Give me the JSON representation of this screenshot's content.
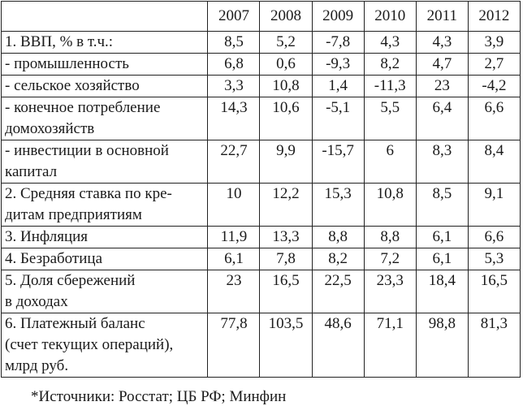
{
  "table": {
    "header": [
      "2007",
      "2008",
      "2009",
      "2010",
      "2011",
      "2012"
    ],
    "rows": [
      {
        "label": [
          "1. ВВП, % в т.ч.:"
        ],
        "values": [
          "8,5",
          "5,2",
          "-7,8",
          "4,3",
          "4,3",
          "3,9"
        ]
      },
      {
        "label": [
          "- промышленность"
        ],
        "values": [
          "6,8",
          "0,6",
          "-9,3",
          "8,2",
          "4,7",
          "2,7"
        ]
      },
      {
        "label": [
          "- сельское хозяйство"
        ],
        "values": [
          "3,3",
          "10,8",
          "1,4",
          "-11,3",
          "23",
          "-4,2"
        ]
      },
      {
        "label": [
          "- конечное потребление",
          "домохозяйств"
        ],
        "values": [
          "14,3",
          "10,6",
          "-5,1",
          "5,5",
          "6,4",
          "6,6"
        ]
      },
      {
        "label": [
          "- инвестиции в основной",
          "капитал"
        ],
        "values": [
          "22,7",
          "9,9",
          "-15,7",
          "6",
          "8,3",
          "8,4"
        ]
      },
      {
        "label": [
          "2. Средняя ставка по кре-",
          "дитам предприятиям"
        ],
        "values": [
          "10",
          "12,2",
          "15,3",
          "10,8",
          "8,5",
          "9,1"
        ]
      },
      {
        "label": [
          "3. Инфляция"
        ],
        "values": [
          "11,9",
          "13,3",
          "8,8",
          "8,8",
          "6,1",
          "6,6"
        ]
      },
      {
        "label": [
          "4. Безработица"
        ],
        "values": [
          "6,1",
          "7,8",
          "8,2",
          "7,2",
          "6,1",
          "5,3"
        ]
      },
      {
        "label": [
          "5. Доля сбережений",
          "в доходах"
        ],
        "values": [
          "23",
          "16,5",
          "22,5",
          "23,3",
          "18,4",
          "16,5"
        ]
      },
      {
        "label": [
          "6. Платежный баланс",
          "(счет текущих операций),",
          "млрд руб."
        ],
        "values": [
          "77,8",
          "103,5",
          "48,6",
          "71,1",
          "98,8",
          "81,3"
        ]
      }
    ]
  },
  "footnote": "*Источники: Росстат; ЦБ РФ; Минфин"
}
